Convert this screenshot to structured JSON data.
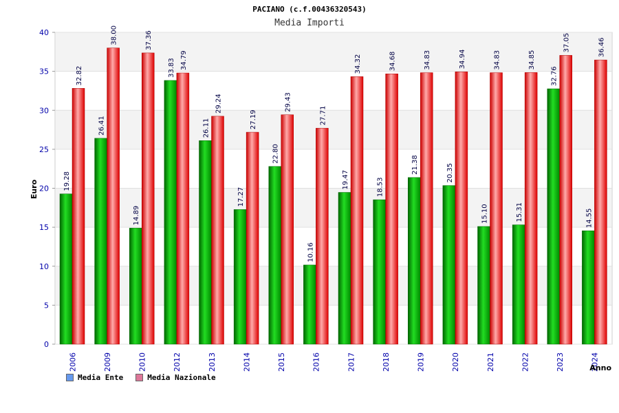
{
  "chart_data": {
    "type": "bar",
    "title": "PACIANO (c.f.00436320543)",
    "subtitle": "Media Importi",
    "xlabel": "Anno",
    "ylabel": "Euro",
    "ylim": [
      0,
      40
    ],
    "yticks": [
      0,
      5,
      10,
      15,
      20,
      25,
      30,
      35,
      40
    ],
    "categories": [
      "2006",
      "2009",
      "2010",
      "2012",
      "2013",
      "2014",
      "2015",
      "2016",
      "2017",
      "2018",
      "2019",
      "2020",
      "2021",
      "2022",
      "2023",
      "2024"
    ],
    "series": [
      {
        "name": "Media Ente",
        "color": "#00b000",
        "values": [
          19.28,
          26.41,
          14.89,
          33.83,
          26.11,
          17.27,
          22.8,
          10.16,
          19.47,
          18.53,
          21.38,
          20.35,
          15.1,
          15.31,
          32.76,
          14.55
        ],
        "labels": [
          "19.28",
          "26.41",
          "14.89",
          "33.83",
          "26.11",
          "17.27",
          "22.80",
          "10.16",
          "19.47",
          "18.53",
          "21.38",
          "20.35",
          "15.10",
          "15.31",
          "32.76",
          "14.55"
        ]
      },
      {
        "name": "Media Nazionale",
        "color": "#ee1111",
        "values": [
          32.82,
          38.0,
          37.36,
          34.79,
          29.24,
          27.19,
          29.43,
          27.71,
          34.32,
          34.68,
          34.83,
          34.94,
          34.83,
          34.85,
          37.05,
          36.46
        ],
        "labels": [
          "32.82",
          "38.00",
          "37.36",
          "34.79",
          "29.24",
          "27.19",
          "29.43",
          "27.71",
          "34.32",
          "34.68",
          "34.83",
          "34.94",
          "34.83",
          "34.85",
          "37.05",
          "36.46"
        ]
      }
    ],
    "grid": true,
    "legend_position": "bottom-left"
  },
  "legend": {
    "ente_label": "Media Ente",
    "ente_color": "#6699ee",
    "nazionale_label": "Media Nazionale",
    "nazionale_color": "#dd7799"
  }
}
